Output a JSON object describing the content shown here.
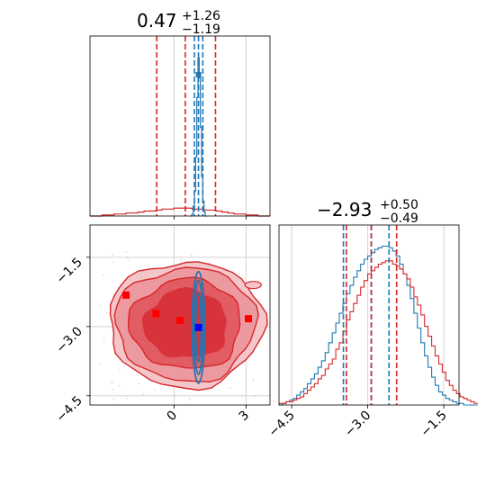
{
  "chart_data": {
    "type": "corner",
    "colors": {
      "red": "#d62728",
      "blue": "#1f77b4",
      "marker_blue": "#0000ff",
      "marker_red": "#ff0000",
      "grid": "#d3d3d3"
    },
    "panel_top": {
      "title": {
        "value": "0.47",
        "upper": "+1.26",
        "lower": "−1.19"
      },
      "xlim": [
        -3.5,
        4.0
      ],
      "quantiles_red": [
        -0.72,
        0.47,
        1.73
      ],
      "quantiles_blue": [
        0.85,
        1.02,
        1.2
      ],
      "red_hist": {
        "x_start": -3.5,
        "bin_width": 0.25,
        "values": [
          0,
          0,
          1,
          1,
          2,
          2,
          3,
          3,
          4,
          5,
          5,
          6,
          7,
          7,
          8,
          8,
          8,
          7,
          7,
          6,
          6,
          5,
          4,
          3,
          2,
          2,
          1,
          1,
          0,
          0
        ]
      },
      "blue_hist": {
        "x_start": 0.7,
        "bin_width": 0.05,
        "values": [
          0,
          2,
          10,
          25,
          60,
          120,
          160,
          140,
          90,
          40,
          15,
          4,
          0
        ]
      },
      "ymax": 175
    },
    "panel_joint": {
      "xlim": [
        -3.5,
        4.0
      ],
      "ylim": [
        -4.7,
        -0.8
      ],
      "xticks": [
        0,
        3
      ],
      "xtick_labels": [
        "0",
        "3"
      ],
      "yticks": [
        -1.5,
        -3.0,
        -4.5
      ],
      "ytick_labels": [
        "−1.5",
        "−3.0",
        "−4.5"
      ],
      "red_markers": [
        [
          -2.0,
          -2.32
        ],
        [
          -0.75,
          -2.72
        ],
        [
          0.25,
          -2.87
        ],
        [
          3.1,
          -2.83
        ]
      ],
      "blue_marker": [
        1.02,
        -3.02
      ]
    },
    "panel_right": {
      "title": {
        "value": "−2.93",
        "upper": "+0.50",
        "lower": "−0.49"
      },
      "xlim": [
        -4.75,
        -1.2
      ],
      "xticks": [
        -4.5,
        -3.0,
        -1.5
      ],
      "xtick_labels": [
        "−4.5",
        "−3.0",
        "−1.5"
      ],
      "quantiles_red": [
        -3.42,
        -2.93,
        -2.43
      ],
      "quantiles_blue": [
        -3.48,
        -2.93,
        -2.58
      ],
      "red_hist": {
        "x_start": -4.75,
        "bin_width": 0.07,
        "values": [
          1,
          1,
          2,
          2,
          3,
          4,
          5,
          7,
          9,
          11,
          13,
          16,
          18,
          22,
          25,
          28,
          34,
          38,
          45,
          52,
          57,
          62,
          67,
          72,
          76,
          80,
          82,
          84,
          86,
          87,
          88,
          88,
          86,
          85,
          83,
          80,
          77,
          72,
          66,
          61,
          55,
          48,
          42,
          36,
          30,
          25,
          20,
          15,
          12,
          9,
          7,
          5,
          4,
          3,
          2,
          1
        ]
      },
      "blue_hist": {
        "x_start": -4.75,
        "bin_width": 0.07,
        "values": [
          0,
          1,
          2,
          3,
          4,
          6,
          8,
          10,
          13,
          16,
          19,
          23,
          27,
          32,
          38,
          44,
          50,
          56,
          62,
          68,
          73,
          78,
          82,
          86,
          89,
          91,
          93,
          95,
          96,
          97,
          97,
          96,
          94,
          91,
          86,
          80,
          73,
          65,
          56,
          47,
          38,
          30,
          23,
          17,
          12,
          8,
          6,
          4,
          3,
          2,
          1,
          1,
          0,
          0,
          0,
          0
        ]
      },
      "ymax": 100
    }
  }
}
